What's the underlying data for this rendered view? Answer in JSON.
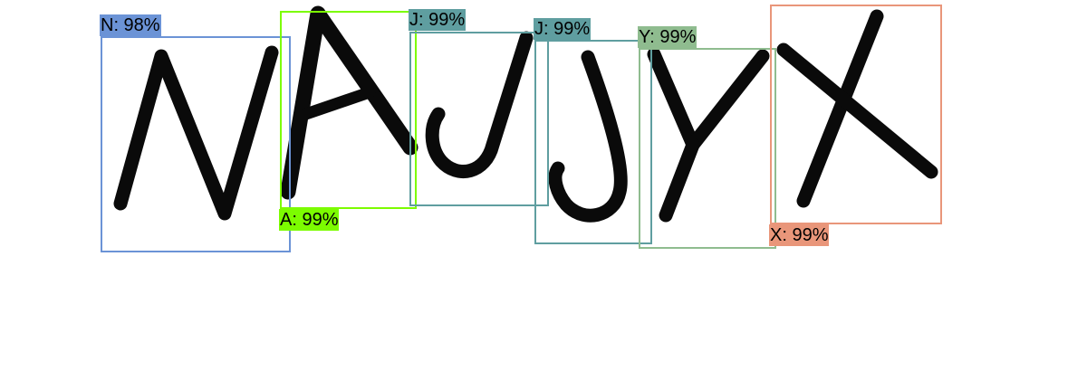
{
  "detections": [
    {
      "letter": "N",
      "label": "N: 98%",
      "confidence": 0.98,
      "color": "#6b93d6"
    },
    {
      "letter": "A",
      "label": "A: 99%",
      "confidence": 0.99,
      "color": "#7cfc00"
    },
    {
      "letter": "J",
      "label": "J: 99%",
      "confidence": 0.99,
      "color": "#5f9ea0"
    },
    {
      "letter": "J",
      "label": "J: 99%",
      "confidence": 0.99,
      "color": "#5f9ea0"
    },
    {
      "letter": "Y",
      "label": "Y: 99%",
      "confidence": 0.99,
      "color": "#8fbc8f"
    },
    {
      "letter": "X",
      "label": "X: 99%",
      "confidence": 0.99,
      "color": "#e9967a"
    }
  ]
}
